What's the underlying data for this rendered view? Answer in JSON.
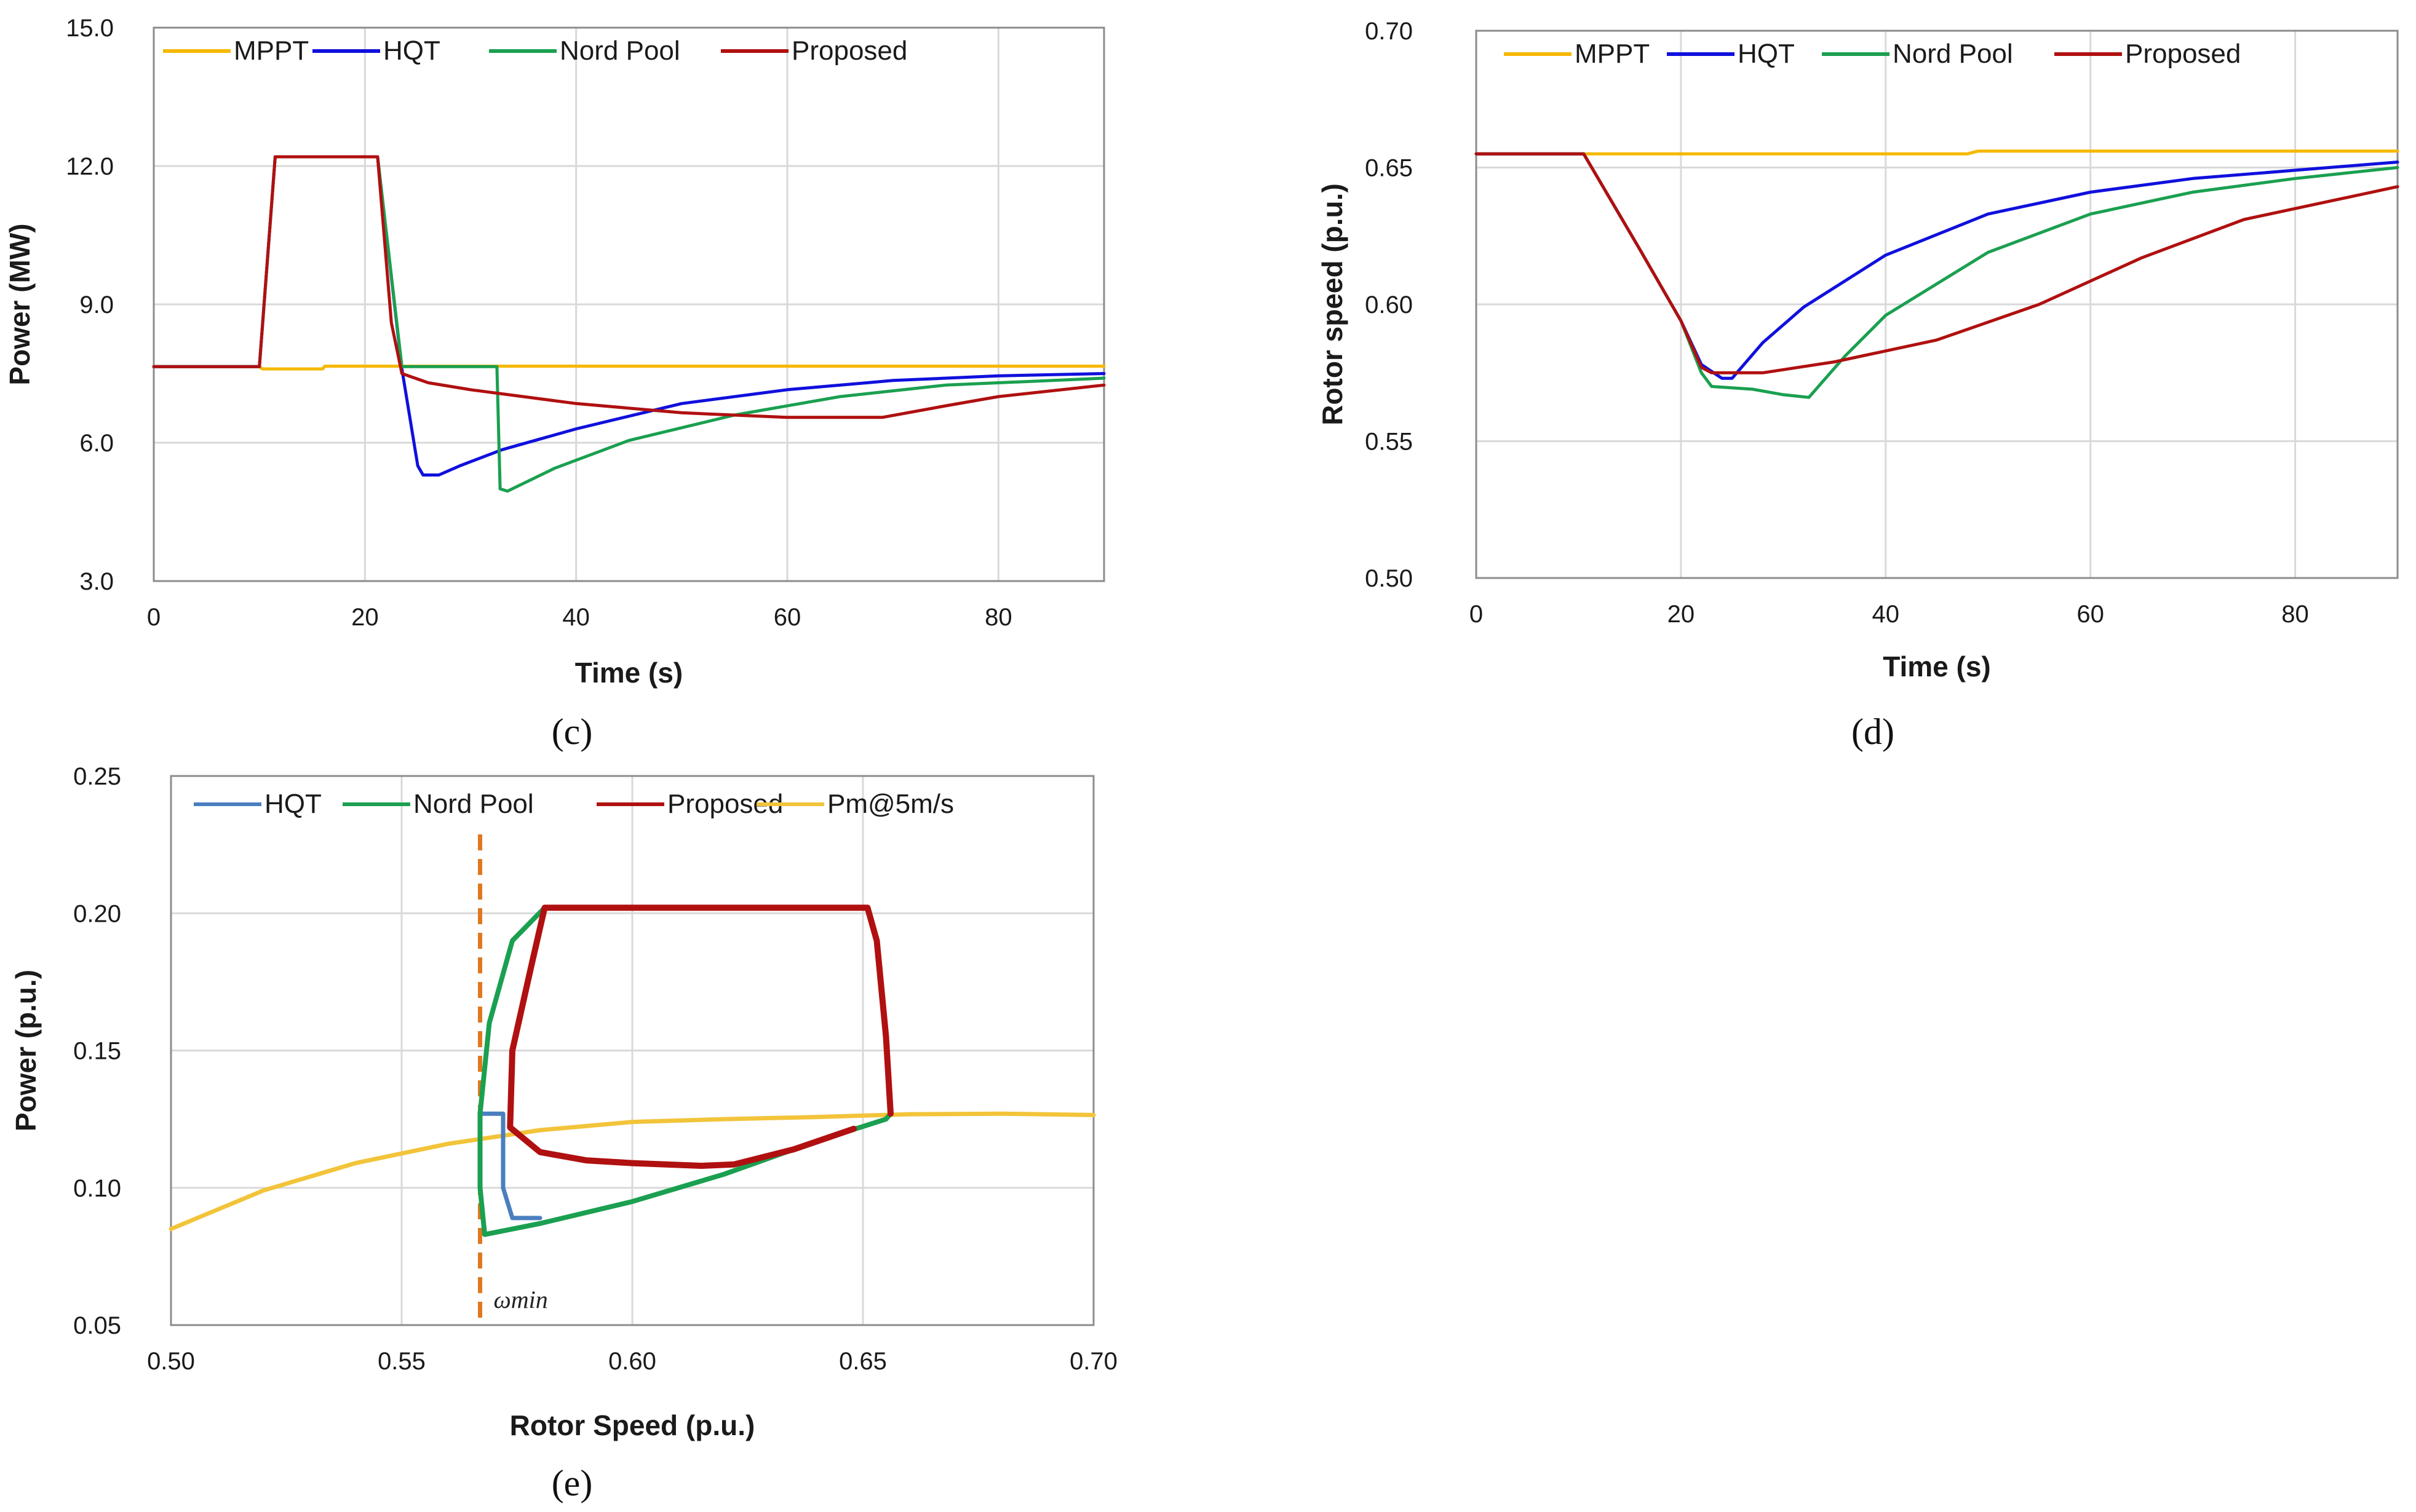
{
  "colors": {
    "mppt": "#F5B800",
    "hqt_c": "#1010DD",
    "hqt_e": "#4A7FBF",
    "nordpool": "#1AA050",
    "proposed": "#B01010",
    "pm": "#F2C43A",
    "omega": "#E07820",
    "grid": "#D9D9D9",
    "axis": "#8C8C8C"
  },
  "chart_data": [
    {
      "id": "c",
      "type": "line",
      "caption": "(c)",
      "xlabel": "Time (s)",
      "ylabel": "Power (MW)",
      "xlim": [
        0,
        90
      ],
      "ylim": [
        3.0,
        15.0
      ],
      "xticks": [
        "0",
        "20",
        "40",
        "60",
        "80"
      ],
      "yticks": [
        "3.0",
        "6.0",
        "9.0",
        "12.0",
        "15.0"
      ],
      "legend": [
        "MPPT",
        "HQT",
        "Nord Pool",
        "Proposed"
      ],
      "series": [
        {
          "name": "MPPT",
          "color_key": "mppt",
          "points": [
            [
              0,
              7.65
            ],
            [
              10,
              7.65
            ],
            [
              10.3,
              7.6
            ],
            [
              16,
              7.6
            ],
            [
              16.2,
              7.66
            ],
            [
              90,
              7.66
            ]
          ]
        },
        {
          "name": "HQT",
          "color_key": "hqt_c",
          "points": [
            [
              0,
              7.65
            ],
            [
              10,
              7.65
            ],
            [
              11.5,
              12.2
            ],
            [
              21.2,
              12.2
            ],
            [
              23.5,
              7.6
            ],
            [
              25,
              5.5
            ],
            [
              25.5,
              5.3
            ],
            [
              27,
              5.3
            ],
            [
              29,
              5.5
            ],
            [
              33,
              5.85
            ],
            [
              40,
              6.3
            ],
            [
              50,
              6.85
            ],
            [
              60,
              7.15
            ],
            [
              70,
              7.35
            ],
            [
              80,
              7.45
            ],
            [
              90,
              7.5
            ]
          ]
        },
        {
          "name": "Nord Pool",
          "color_key": "nordpool",
          "points": [
            [
              0,
              7.65
            ],
            [
              10,
              7.65
            ],
            [
              11.5,
              12.2
            ],
            [
              21.2,
              12.2
            ],
            [
              23.5,
              7.65
            ],
            [
              32.5,
              7.65
            ],
            [
              32.8,
              5.0
            ],
            [
              33.5,
              4.95
            ],
            [
              38,
              5.45
            ],
            [
              45,
              6.05
            ],
            [
              55,
              6.6
            ],
            [
              65,
              7.0
            ],
            [
              75,
              7.25
            ],
            [
              90,
              7.4
            ]
          ]
        },
        {
          "name": "Proposed",
          "color_key": "proposed",
          "points": [
            [
              0,
              7.65
            ],
            [
              10,
              7.65
            ],
            [
              11.5,
              12.2
            ],
            [
              21.2,
              12.2
            ],
            [
              22.5,
              8.6
            ],
            [
              23.5,
              7.5
            ],
            [
              26,
              7.3
            ],
            [
              30,
              7.15
            ],
            [
              40,
              6.85
            ],
            [
              50,
              6.65
            ],
            [
              60,
              6.55
            ],
            [
              69,
              6.55
            ],
            [
              75,
              6.8
            ],
            [
              80,
              7.0
            ],
            [
              90,
              7.25
            ]
          ]
        }
      ]
    },
    {
      "id": "d",
      "type": "line",
      "caption": "(d)",
      "xlabel": "Time (s)",
      "ylabel": "Rotor speed (p.u.)",
      "xlim": [
        0,
        90
      ],
      "ylim": [
        0.5,
        0.7
      ],
      "xticks": [
        "0",
        "20",
        "40",
        "60",
        "80"
      ],
      "yticks": [
        "0.50",
        "0.55",
        "0.60",
        "0.65",
        "0.70"
      ],
      "legend": [
        "MPPT",
        "HQT",
        "Nord Pool",
        "Proposed"
      ],
      "series": [
        {
          "name": "MPPT",
          "color_key": "mppt",
          "points": [
            [
              0,
              0.655
            ],
            [
              48,
              0.655
            ],
            [
              49,
              0.656
            ],
            [
              90,
              0.656
            ]
          ]
        },
        {
          "name": "HQT",
          "color_key": "hqt_c",
          "points": [
            [
              0,
              0.655
            ],
            [
              10.5,
              0.655
            ],
            [
              16,
              0.62
            ],
            [
              20,
              0.594
            ],
            [
              22,
              0.578
            ],
            [
              24,
              0.573
            ],
            [
              25,
              0.573
            ],
            [
              28,
              0.586
            ],
            [
              32,
              0.599
            ],
            [
              40,
              0.618
            ],
            [
              50,
              0.633
            ],
            [
              60,
              0.641
            ],
            [
              70,
              0.646
            ],
            [
              80,
              0.649
            ],
            [
              90,
              0.652
            ]
          ]
        },
        {
          "name": "Nord Pool",
          "color_key": "nordpool",
          "points": [
            [
              0,
              0.655
            ],
            [
              10.5,
              0.655
            ],
            [
              16,
              0.62
            ],
            [
              20,
              0.594
            ],
            [
              22,
              0.575
            ],
            [
              23,
              0.57
            ],
            [
              27,
              0.569
            ],
            [
              30,
              0.567
            ],
            [
              32.5,
              0.566
            ],
            [
              36,
              0.581
            ],
            [
              40,
              0.596
            ],
            [
              50,
              0.619
            ],
            [
              60,
              0.633
            ],
            [
              70,
              0.641
            ],
            [
              80,
              0.646
            ],
            [
              90,
              0.65
            ]
          ]
        },
        {
          "name": "Proposed",
          "color_key": "proposed",
          "points": [
            [
              0,
              0.655
            ],
            [
              10.5,
              0.655
            ],
            [
              16,
              0.62
            ],
            [
              20,
              0.594
            ],
            [
              22,
              0.577
            ],
            [
              23,
              0.575
            ],
            [
              28,
              0.575
            ],
            [
              35,
              0.579
            ],
            [
              45,
              0.587
            ],
            [
              55,
              0.6
            ],
            [
              65,
              0.617
            ],
            [
              75,
              0.631
            ],
            [
              85,
              0.639
            ],
            [
              90,
              0.643
            ]
          ]
        }
      ]
    },
    {
      "id": "e",
      "type": "line",
      "caption": "(e)",
      "xlabel": "Rotor Speed (p.u.)",
      "ylabel": "Power (p.u.)",
      "xlim": [
        0.5,
        0.7
      ],
      "ylim": [
        0.05,
        0.25
      ],
      "xticks": [
        "0.50",
        "0.55",
        "0.60",
        "0.65",
        "0.70"
      ],
      "yticks": [
        "0.05",
        "0.10",
        "0.15",
        "0.20",
        "0.25"
      ],
      "legend": [
        "HQT",
        "Nord Pool",
        "Proposed",
        "Pm@5m/s"
      ],
      "annotation": {
        "label": "ωmin",
        "x": 0.567
      },
      "series": [
        {
          "name": "Pm@5m/s",
          "color_key": "pm",
          "points": [
            [
              0.5,
              0.085
            ],
            [
              0.52,
              0.099
            ],
            [
              0.54,
              0.109
            ],
            [
              0.56,
              0.116
            ],
            [
              0.58,
              0.121
            ],
            [
              0.6,
              0.124
            ],
            [
              0.62,
              0.125
            ],
            [
              0.64,
              0.1258
            ],
            [
              0.66,
              0.1268
            ],
            [
              0.68,
              0.127
            ],
            [
              0.7,
              0.1265
            ]
          ]
        },
        {
          "name": "HQT",
          "color_key": "hqt_e",
          "points": [
            [
              0.5675,
              0.127
            ],
            [
              0.572,
              0.127
            ],
            [
              0.572,
              0.1
            ],
            [
              0.574,
              0.089
            ],
            [
              0.58,
              0.089
            ]
          ]
        },
        {
          "name": "Nord Pool",
          "color_key": "nordpool",
          "points": [
            [
              0.655,
              0.125
            ],
            [
              0.656,
              0.127
            ],
            [
              0.655,
              0.155
            ],
            [
              0.653,
              0.19
            ],
            [
              0.651,
              0.202
            ],
            [
              0.581,
              0.202
            ],
            [
              0.574,
              0.19
            ],
            [
              0.569,
              0.16
            ],
            [
              0.567,
              0.127
            ],
            [
              0.567,
              0.1
            ],
            [
              0.568,
              0.083
            ],
            [
              0.58,
              0.087
            ],
            [
              0.6,
              0.095
            ],
            [
              0.62,
              0.105
            ],
            [
              0.64,
              0.117
            ],
            [
              0.655,
              0.125
            ]
          ]
        },
        {
          "name": "Proposed",
          "color_key": "proposed",
          "points": [
            [
              0.656,
              0.127
            ],
            [
              0.655,
              0.155
            ],
            [
              0.653,
              0.19
            ],
            [
              0.651,
              0.202
            ],
            [
              0.581,
              0.202
            ],
            [
              0.578,
              0.18
            ],
            [
              0.574,
              0.15
            ],
            [
              0.5735,
              0.122
            ],
            [
              0.58,
              0.113
            ],
            [
              0.59,
              0.11
            ],
            [
              0.6,
              0.109
            ],
            [
              0.615,
              0.108
            ],
            [
              0.622,
              0.1085
            ],
            [
              0.635,
              0.114
            ],
            [
              0.648,
              0.1215
            ]
          ]
        }
      ]
    }
  ]
}
